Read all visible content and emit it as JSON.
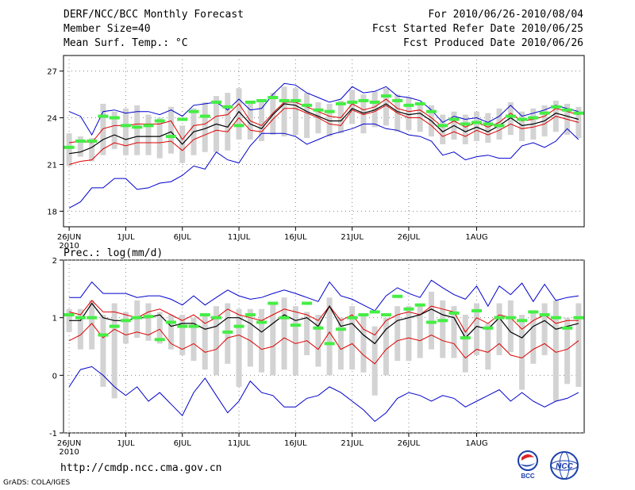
{
  "header": {
    "title": "DERF/NCC/BCC Monthly Forecast",
    "member_size": "Member Size=40",
    "variable": "Mean Surf. Temp.: °C",
    "period": "For 2010/06/26-2010/08/04",
    "fcst_started": "Fcst Started Refer Date 2010/06/25",
    "fcst_produced": "Fcst Produced Date 2010/06/26"
  },
  "footer": {
    "url": "http://cmdp.ncc.cma.gov.cn",
    "grads": "GrADS: COLA/IGES",
    "logo_left": "BCC",
    "logo_right": "NCC"
  },
  "colors": {
    "envelope": "#0000cc",
    "spread": "#dd0000",
    "mean": "#000000",
    "box": "#d3d3d3",
    "obs": "#44ee44",
    "grid": "#888888"
  },
  "chart_data": [
    {
      "type": "line",
      "title": "Mean Surf. Temp.: °C",
      "xlabel": "",
      "ylabel": "",
      "ylim": [
        17,
        28
      ],
      "y_ticks": [
        "27",
        "24",
        "21",
        "18"
      ],
      "y_tick_values": [
        27,
        24,
        21,
        18
      ],
      "x_range": [
        0,
        40
      ],
      "x_tick_labels": [
        "26JUN",
        "1JUL",
        "6JUL",
        "11JUL",
        "16JUL",
        "21JUL",
        "26JUL",
        "1AUG"
      ],
      "x_tick_days": [
        0,
        5,
        10,
        15,
        20,
        25,
        30,
        36
      ],
      "year_label": "2010",
      "series": [
        {
          "name": "max",
          "values": [
            24.4,
            24.1,
            22.9,
            24.4,
            24.5,
            24.3,
            24.4,
            24.4,
            24.2,
            24.5,
            24.1,
            24.8,
            24.9,
            25.0,
            24.5,
            25.2,
            24.5,
            24.6,
            25.5,
            26.2,
            26.1,
            25.6,
            25.3,
            25.0,
            25.2,
            26.0,
            25.6,
            25.7,
            26.0,
            25.4,
            25.3,
            25.1,
            24.5,
            23.7,
            24.1,
            23.9,
            24.0,
            23.7,
            24.1,
            24.8,
            24.1,
            24.3,
            24.5,
            24.8,
            24.6,
            24.4
          ]
        },
        {
          "name": "upper",
          "values": [
            22.4,
            22.5,
            22.4,
            23.3,
            23.5,
            23.5,
            23.6,
            23.6,
            23.6,
            23.8,
            22.6,
            23.5,
            23.6,
            24.1,
            24.2,
            24.9,
            23.8,
            23.5,
            24.3,
            25.0,
            25.0,
            24.7,
            24.4,
            24.1,
            24.0,
            24.9,
            24.5,
            24.7,
            25.2,
            24.6,
            24.4,
            24.5,
            24.0,
            23.4,
            23.8,
            23.4,
            23.7,
            23.4,
            23.7,
            24.3,
            23.8,
            23.9,
            24.1,
            24.6,
            24.4,
            24.2
          ]
        },
        {
          "name": "mean",
          "values": [
            21.7,
            21.8,
            22.1,
            22.6,
            22.9,
            22.6,
            22.8,
            22.8,
            22.8,
            23.1,
            22.3,
            23.1,
            23.3,
            23.6,
            23.4,
            24.4,
            23.6,
            23.3,
            24.2,
            24.9,
            24.8,
            24.4,
            24.1,
            23.8,
            23.8,
            24.6,
            24.3,
            24.5,
            24.9,
            24.4,
            24.2,
            24.3,
            23.8,
            23.1,
            23.5,
            23.1,
            23.4,
            23.1,
            23.5,
            24.0,
            23.5,
            23.6,
            23.8,
            24.3,
            24.1,
            23.9
          ]
        },
        {
          "name": "lower",
          "values": [
            21.0,
            21.2,
            21.3,
            22.0,
            22.4,
            22.2,
            22.4,
            22.4,
            22.4,
            22.5,
            21.9,
            22.6,
            22.9,
            23.2,
            23.1,
            24.0,
            23.2,
            23.1,
            23.9,
            24.6,
            24.6,
            24.3,
            24.0,
            23.6,
            23.5,
            24.5,
            24.2,
            24.4,
            24.8,
            24.3,
            24.0,
            24.0,
            23.5,
            22.8,
            23.1,
            22.8,
            23.2,
            22.9,
            23.2,
            23.6,
            23.3,
            23.4,
            23.6,
            24.1,
            23.9,
            23.7
          ]
        },
        {
          "name": "min",
          "values": [
            18.2,
            18.6,
            19.5,
            19.5,
            20.1,
            20.1,
            19.4,
            19.5,
            19.8,
            19.9,
            20.3,
            20.9,
            20.7,
            21.8,
            21.3,
            21.1,
            22.2,
            23.0,
            23.0,
            23.0,
            22.8,
            22.3,
            22.6,
            22.9,
            23.1,
            23.3,
            23.6,
            23.6,
            23.3,
            23.2,
            22.9,
            22.8,
            22.5,
            21.6,
            21.8,
            21.3,
            21.5,
            21.6,
            21.4,
            21.4,
            22.2,
            22.4,
            22.1,
            22.5,
            23.3,
            22.6
          ]
        },
        {
          "name": "box_high",
          "values": [
            23.0,
            22.8,
            22.7,
            24.9,
            24.4,
            24.6,
            24.8,
            24.2,
            24.0,
            24.7,
            23.5,
            24.6,
            25.0,
            25.4,
            25.6,
            25.9,
            24.9,
            25.0,
            25.6,
            26.0,
            25.9,
            25.6,
            25.0,
            24.9,
            25.1,
            25.8,
            25.5,
            25.7,
            25.9,
            25.5,
            25.3,
            25.0,
            24.8,
            24.2,
            24.4,
            24.2,
            24.4,
            24.3,
            24.6,
            25.0,
            24.4,
            24.6,
            24.8,
            25.1,
            24.9,
            24.7
          ]
        },
        {
          "name": "box_low",
          "values": [
            20.9,
            21.5,
            21.2,
            21.6,
            22.0,
            21.6,
            21.6,
            21.6,
            21.4,
            21.7,
            21.1,
            21.6,
            21.8,
            21.8,
            21.9,
            22.6,
            22.6,
            22.5,
            22.9,
            22.8,
            22.9,
            22.7,
            23.0,
            22.8,
            23.0,
            23.6,
            23.0,
            23.4,
            23.5,
            23.1,
            23.2,
            23.1,
            22.8,
            22.3,
            22.6,
            22.3,
            22.5,
            22.4,
            22.6,
            22.9,
            22.5,
            22.6,
            22.8,
            23.1,
            22.9,
            22.7
          ]
        },
        {
          "name": "observed",
          "values": [
            22.1,
            22.5,
            22.5,
            24.1,
            24.0,
            23.5,
            23.4,
            23.5,
            23.8,
            22.8,
            23.9,
            24.4,
            24.1,
            25.0,
            24.7,
            23.5,
            25.0,
            25.1,
            25.3,
            25.1,
            25.1,
            24.8,
            24.5,
            24.4,
            24.9,
            25.0,
            25.1,
            25.0,
            25.4,
            25.1,
            24.8,
            24.9,
            24.4,
            23.5,
            23.9,
            23.6,
            23.7,
            23.6,
            23.5,
            24.1,
            23.9,
            24.0,
            24.3,
            24.7,
            24.5,
            24.3
          ]
        }
      ]
    },
    {
      "type": "line",
      "title": "Prec.: log(mm/d)",
      "xlabel": "",
      "ylabel": "",
      "ylim": [
        -1,
        2
      ],
      "y_ticks": [
        "2",
        "1",
        "0",
        "-1"
      ],
      "y_tick_values": [
        2,
        1,
        0,
        -1
      ],
      "x_range": [
        0,
        40
      ],
      "x_tick_labels": [
        "26JUN",
        "1JUL",
        "6JUL",
        "11JUL",
        "16JUL",
        "21JUL",
        "26JUL",
        "1AUG"
      ],
      "x_tick_days": [
        0,
        5,
        10,
        15,
        20,
        25,
        30,
        36
      ],
      "year_label": "2010",
      "series": [
        {
          "name": "max",
          "values": [
            1.35,
            1.35,
            1.62,
            1.42,
            1.42,
            1.42,
            1.35,
            1.38,
            1.38,
            1.32,
            1.22,
            1.38,
            1.22,
            1.35,
            1.48,
            1.38,
            1.32,
            1.35,
            1.42,
            1.48,
            1.42,
            1.35,
            1.28,
            1.62,
            1.38,
            1.32,
            1.22,
            1.12,
            1.38,
            1.52,
            1.42,
            1.35,
            1.65,
            1.52,
            1.4,
            1.32,
            1.55,
            1.2,
            1.55,
            1.4,
            1.6,
            1.28,
            1.58,
            1.3,
            1.35,
            1.38
          ]
        },
        {
          "name": "upper",
          "values": [
            1.1,
            1.05,
            1.3,
            1.1,
            1.1,
            1.05,
            1.0,
            1.1,
            1.15,
            1.05,
            0.95,
            1.05,
            0.9,
            1.0,
            1.15,
            1.05,
            1.0,
            0.95,
            1.05,
            1.15,
            1.1,
            1.05,
            0.95,
            1.2,
            0.95,
            1.05,
            0.8,
            0.7,
            0.95,
            1.05,
            1.1,
            1.05,
            1.2,
            1.15,
            1.1,
            0.75,
            1.0,
            0.9,
            1.05,
            1.0,
            0.8,
            0.95,
            1.05,
            0.9,
            0.95,
            0.95
          ]
        },
        {
          "name": "mean",
          "values": [
            0.95,
            0.95,
            1.25,
            1.0,
            0.95,
            0.95,
            1.0,
            1.0,
            1.05,
            0.85,
            0.9,
            0.9,
            0.8,
            0.85,
            1.0,
            1.0,
            0.9,
            0.75,
            0.9,
            1.05,
            0.95,
            1.0,
            0.85,
            1.2,
            0.85,
            0.9,
            0.7,
            0.55,
            0.8,
            0.95,
            1.0,
            1.05,
            1.15,
            1.05,
            1.0,
            0.65,
            0.85,
            0.8,
            1.0,
            0.75,
            0.65,
            0.85,
            0.95,
            0.8,
            0.85,
            0.9
          ]
        },
        {
          "name": "lower",
          "values": [
            0.6,
            0.7,
            0.9,
            0.65,
            0.8,
            0.7,
            0.75,
            0.7,
            0.8,
            0.55,
            0.45,
            0.55,
            0.4,
            0.45,
            0.65,
            0.7,
            0.6,
            0.45,
            0.5,
            0.65,
            0.55,
            0.6,
            0.45,
            0.75,
            0.45,
            0.55,
            0.35,
            0.2,
            0.45,
            0.6,
            0.65,
            0.6,
            0.7,
            0.6,
            0.55,
            0.3,
            0.45,
            0.4,
            0.55,
            0.35,
            0.3,
            0.45,
            0.55,
            0.4,
            0.45,
            0.6
          ]
        },
        {
          "name": "min",
          "values": [
            -0.2,
            0.1,
            0.15,
            0.0,
            -0.2,
            -0.35,
            -0.2,
            -0.45,
            -0.3,
            -0.5,
            -0.7,
            -0.3,
            -0.05,
            -0.35,
            -0.65,
            -0.45,
            -0.1,
            -0.3,
            -0.35,
            -0.55,
            -0.55,
            -0.4,
            -0.35,
            -0.2,
            -0.3,
            -0.45,
            -0.6,
            -0.8,
            -0.65,
            -0.4,
            -0.3,
            -0.35,
            -0.45,
            -0.35,
            -0.4,
            -0.55,
            -0.45,
            -0.35,
            -0.25,
            -0.45,
            -0.3,
            -0.45,
            -0.55,
            -0.45,
            -0.4,
            -0.3
          ]
        },
        {
          "name": "box_high",
          "values": [
            1.15,
            1.15,
            1.3,
            1.05,
            1.25,
            1.1,
            1.3,
            1.25,
            1.1,
            1.05,
            1.05,
            1.0,
            1.05,
            1.2,
            1.25,
            1.15,
            1.15,
            1.15,
            1.25,
            1.35,
            1.2,
            1.1,
            1.05,
            1.35,
            1.0,
            1.2,
            1.05,
            0.85,
            1.0,
            1.2,
            1.2,
            1.25,
            1.45,
            1.3,
            1.2,
            1.05,
            1.25,
            0.9,
            1.25,
            1.3,
            1.05,
            1.1,
            1.25,
            1.3,
            1.0,
            1.25
          ]
        },
        {
          "name": "box_low",
          "values": [
            0.75,
            0.45,
            0.45,
            -0.2,
            -0.4,
            0.55,
            0.65,
            0.6,
            0.55,
            0.45,
            0.35,
            0.25,
            0.1,
            0.0,
            0.2,
            -0.2,
            0.15,
            0.05,
            0.0,
            0.1,
            0.0,
            0.35,
            0.15,
            0.0,
            0.1,
            0.1,
            0.05,
            -0.35,
            0.0,
            0.25,
            0.25,
            0.3,
            0.45,
            0.3,
            0.3,
            0.05,
            0.35,
            0.1,
            0.35,
            0.4,
            -0.25,
            0.2,
            0.35,
            -0.45,
            -0.15,
            -0.2
          ]
        },
        {
          "name": "observed",
          "values": [
            1.05,
            1.0,
            1.0,
            0.7,
            0.85,
            0.95,
            1.0,
            1.02,
            0.62,
            0.92,
            0.85,
            0.85,
            1.05,
            1.0,
            0.75,
            0.85,
            1.05,
            0.92,
            1.25,
            1.0,
            0.87,
            1.25,
            0.82,
            0.55,
            0.8,
            1.0,
            1.05,
            1.1,
            1.05,
            1.37,
            1.15,
            1.22,
            0.92,
            0.95,
            1.08,
            0.65,
            1.12,
            0.82,
            1.0,
            1.0,
            0.95,
            1.1,
            1.05,
            1.0,
            0.82,
            1.0
          ]
        }
      ]
    }
  ]
}
